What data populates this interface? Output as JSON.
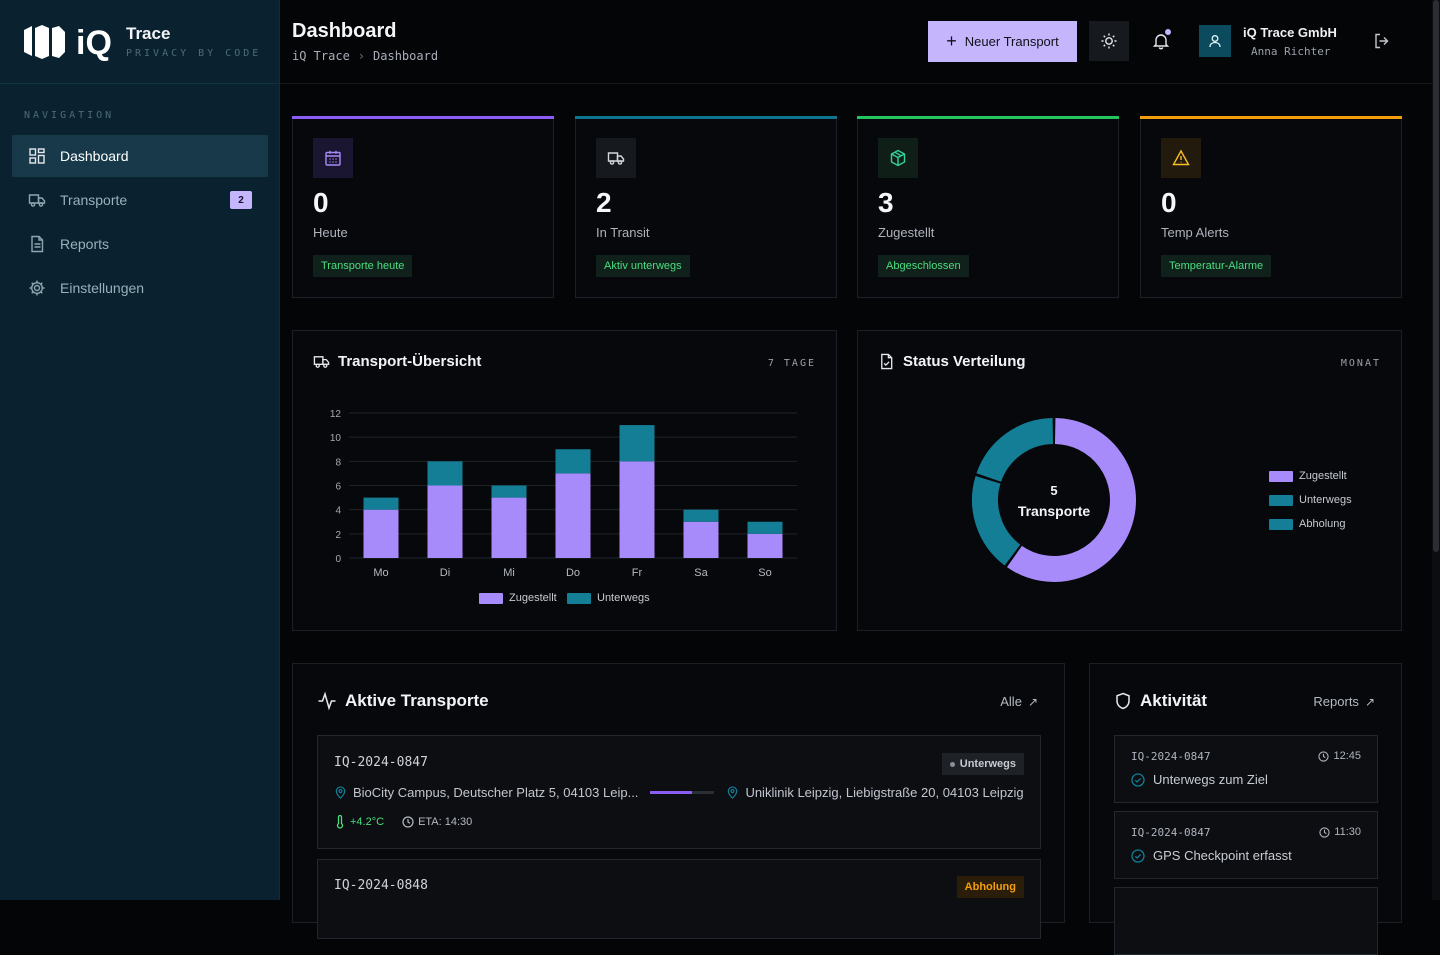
{
  "brand": {
    "logo_text": "iQ",
    "title": "Trace",
    "subtitle": "PRIVACY BY CODE"
  },
  "sidebar": {
    "section_label": "NAVIGATION",
    "items": [
      {
        "label": "Dashboard",
        "icon": "grid-icon",
        "active": true
      },
      {
        "label": "Transporte",
        "icon": "truck-icon",
        "badge": "2"
      },
      {
        "label": "Reports",
        "icon": "document-icon"
      },
      {
        "label": "Einstellungen",
        "icon": "gear-icon"
      }
    ]
  },
  "header": {
    "title": "Dashboard",
    "breadcrumb": [
      "iQ Trace",
      "Dashboard"
    ],
    "new_button": "Neuer Transport",
    "org_name": "iQ Trace GmbH",
    "user_name": "Anna Richter"
  },
  "stats": [
    {
      "value": "0",
      "label": "Heute",
      "tag": "Transporte heute",
      "color": "#8b5cf6",
      "icon": "calendar-icon"
    },
    {
      "value": "2",
      "label": "In Transit",
      "tag": "Aktiv unterwegs",
      "color": "#0e7490",
      "icon": "truck-icon"
    },
    {
      "value": "3",
      "label": "Zugestellt",
      "tag": "Abgeschlossen",
      "color": "#22c55e",
      "icon": "package-icon"
    },
    {
      "value": "0",
      "label": "Temp Alerts",
      "tag": "Temperatur-Alarme",
      "color": "#f59e0b",
      "icon": "warning-icon"
    }
  ],
  "overview_panel": {
    "title": "Transport-Übersicht",
    "meta": "7 TAGE"
  },
  "status_panel": {
    "title": "Status Verteilung",
    "meta": "MONAT",
    "center_value": "5",
    "center_label": "Transporte"
  },
  "chart_data": [
    {
      "type": "bar",
      "stacked": true,
      "categories": [
        "Mo",
        "Di",
        "Mi",
        "Do",
        "Fr",
        "Sa",
        "So"
      ],
      "series": [
        {
          "name": "Zugestellt",
          "values": [
            4,
            6,
            5,
            7,
            8,
            3,
            2
          ],
          "color": "#a78bfa"
        },
        {
          "name": "Unterwegs",
          "values": [
            1,
            2,
            1,
            2,
            3,
            1,
            1
          ],
          "color": "#137e96"
        }
      ],
      "y_ticks": [
        0,
        2,
        4,
        6,
        8,
        10,
        12
      ],
      "ylim": [
        0,
        12
      ],
      "grid": true,
      "legend": "bottom"
    },
    {
      "type": "pie",
      "donut": true,
      "slices": [
        {
          "name": "Zugestellt",
          "value": 3,
          "color": "#a78bfa"
        },
        {
          "name": "Unterwegs",
          "value": 1,
          "color": "#137e96"
        },
        {
          "name": "Abholung",
          "value": 1,
          "color": "#137e96"
        }
      ],
      "legend": "right"
    }
  ],
  "active_transports": {
    "title": "Aktive Transporte",
    "link": "Alle",
    "items": [
      {
        "id": "IQ-2024-0847",
        "status": "Unterwegs",
        "from": "BioCity Campus, Deutscher Platz 5, 04103 Leip...",
        "to": "Uniklinik Leipzig, Liebigstraße 20, 04103 Leipzig",
        "progress": 0.65,
        "temp": "+4.2°C",
        "eta": "ETA: 14:30"
      },
      {
        "id": "IQ-2024-0848",
        "status": "Abholung"
      }
    ]
  },
  "activity": {
    "title": "Aktivität",
    "link": "Reports",
    "items": [
      {
        "id": "IQ-2024-0847",
        "time": "12:45",
        "text": "Unterwegs zum Ziel"
      },
      {
        "id": "IQ-2024-0847",
        "time": "11:30",
        "text": "GPS Checkpoint erfasst"
      }
    ]
  }
}
